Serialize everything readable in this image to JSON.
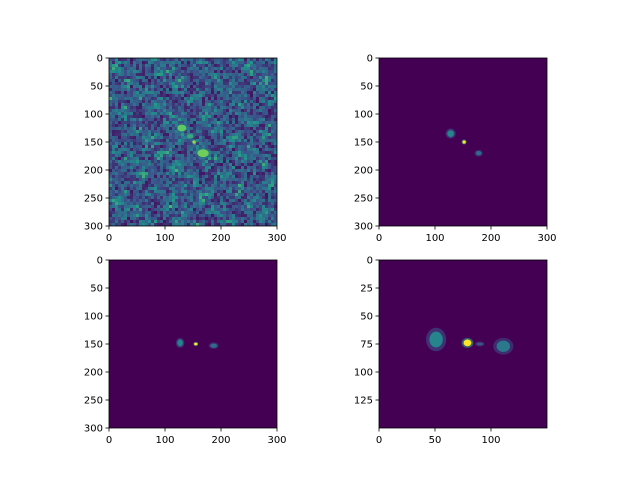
{
  "chart_data": [
    {
      "type": "heatmap",
      "colormap": "viridis",
      "background_color": "#440154",
      "extent": {
        "x": [
          0,
          300
        ],
        "y": [
          0,
          300
        ]
      },
      "y_inverted": true,
      "xticks": [
        0,
        100,
        200,
        300
      ],
      "yticks": [
        0,
        50,
        100,
        150,
        200,
        250,
        300
      ],
      "noise": {
        "level": 0.33,
        "variation": 0.35
      },
      "features": [
        {
          "x": 130,
          "y": 125,
          "rx": 8,
          "ry": 6,
          "value": 0.75
        },
        {
          "x": 145,
          "y": 140,
          "rx": 6,
          "ry": 4,
          "value": 0.6
        },
        {
          "x": 152,
          "y": 150,
          "rx": 3,
          "ry": 3,
          "value": 0.85
        },
        {
          "x": 168,
          "y": 170,
          "rx": 10,
          "ry": 7,
          "value": 0.78
        }
      ]
    },
    {
      "type": "heatmap",
      "colormap": "viridis",
      "background_color": "#440154",
      "extent": {
        "x": [
          0,
          300
        ],
        "y": [
          0,
          300
        ]
      },
      "y_inverted": true,
      "xticks": [
        0,
        100,
        200,
        300
      ],
      "yticks": [
        0,
        50,
        100,
        150,
        200,
        250,
        300
      ],
      "features": [
        {
          "x": 128,
          "y": 135,
          "rx": 6,
          "ry": 6,
          "value": 0.45
        },
        {
          "x": 152,
          "y": 150,
          "rx": 3,
          "ry": 3,
          "value": 1.0
        },
        {
          "x": 178,
          "y": 170,
          "rx": 5,
          "ry": 4,
          "value": 0.35
        }
      ]
    },
    {
      "type": "heatmap",
      "colormap": "viridis",
      "background_color": "#440154",
      "extent": {
        "x": [
          0,
          300
        ],
        "y": [
          0,
          300
        ]
      },
      "y_inverted": true,
      "xticks": [
        0,
        100,
        200,
        300
      ],
      "yticks": [
        0,
        50,
        100,
        150,
        200,
        250,
        300
      ],
      "features": [
        {
          "x": 127,
          "y": 148,
          "rx": 5,
          "ry": 6,
          "value": 0.45
        },
        {
          "x": 155,
          "y": 150,
          "rx": 3,
          "ry": 2.5,
          "value": 1.0
        },
        {
          "x": 187,
          "y": 153,
          "rx": 6,
          "ry": 4,
          "value": 0.35
        }
      ]
    },
    {
      "type": "heatmap",
      "colormap": "viridis",
      "background_color": "#440154",
      "extent": {
        "x": [
          0,
          150
        ],
        "y": [
          0,
          150
        ]
      },
      "y_inverted": true,
      "xticks": [
        0,
        50,
        100
      ],
      "yticks": [
        0,
        25,
        50,
        75,
        100,
        125
      ],
      "features": [
        {
          "x": 51,
          "y": 71,
          "rx": 6,
          "ry": 7,
          "value": 0.45
        },
        {
          "x": 79,
          "y": 74,
          "rx": 3.5,
          "ry": 3,
          "value": 1.0
        },
        {
          "x": 90,
          "y": 75,
          "rx": 3,
          "ry": 1.5,
          "value": 0.25
        },
        {
          "x": 111,
          "y": 77,
          "rx": 6,
          "ry": 5,
          "value": 0.4
        }
      ]
    }
  ]
}
